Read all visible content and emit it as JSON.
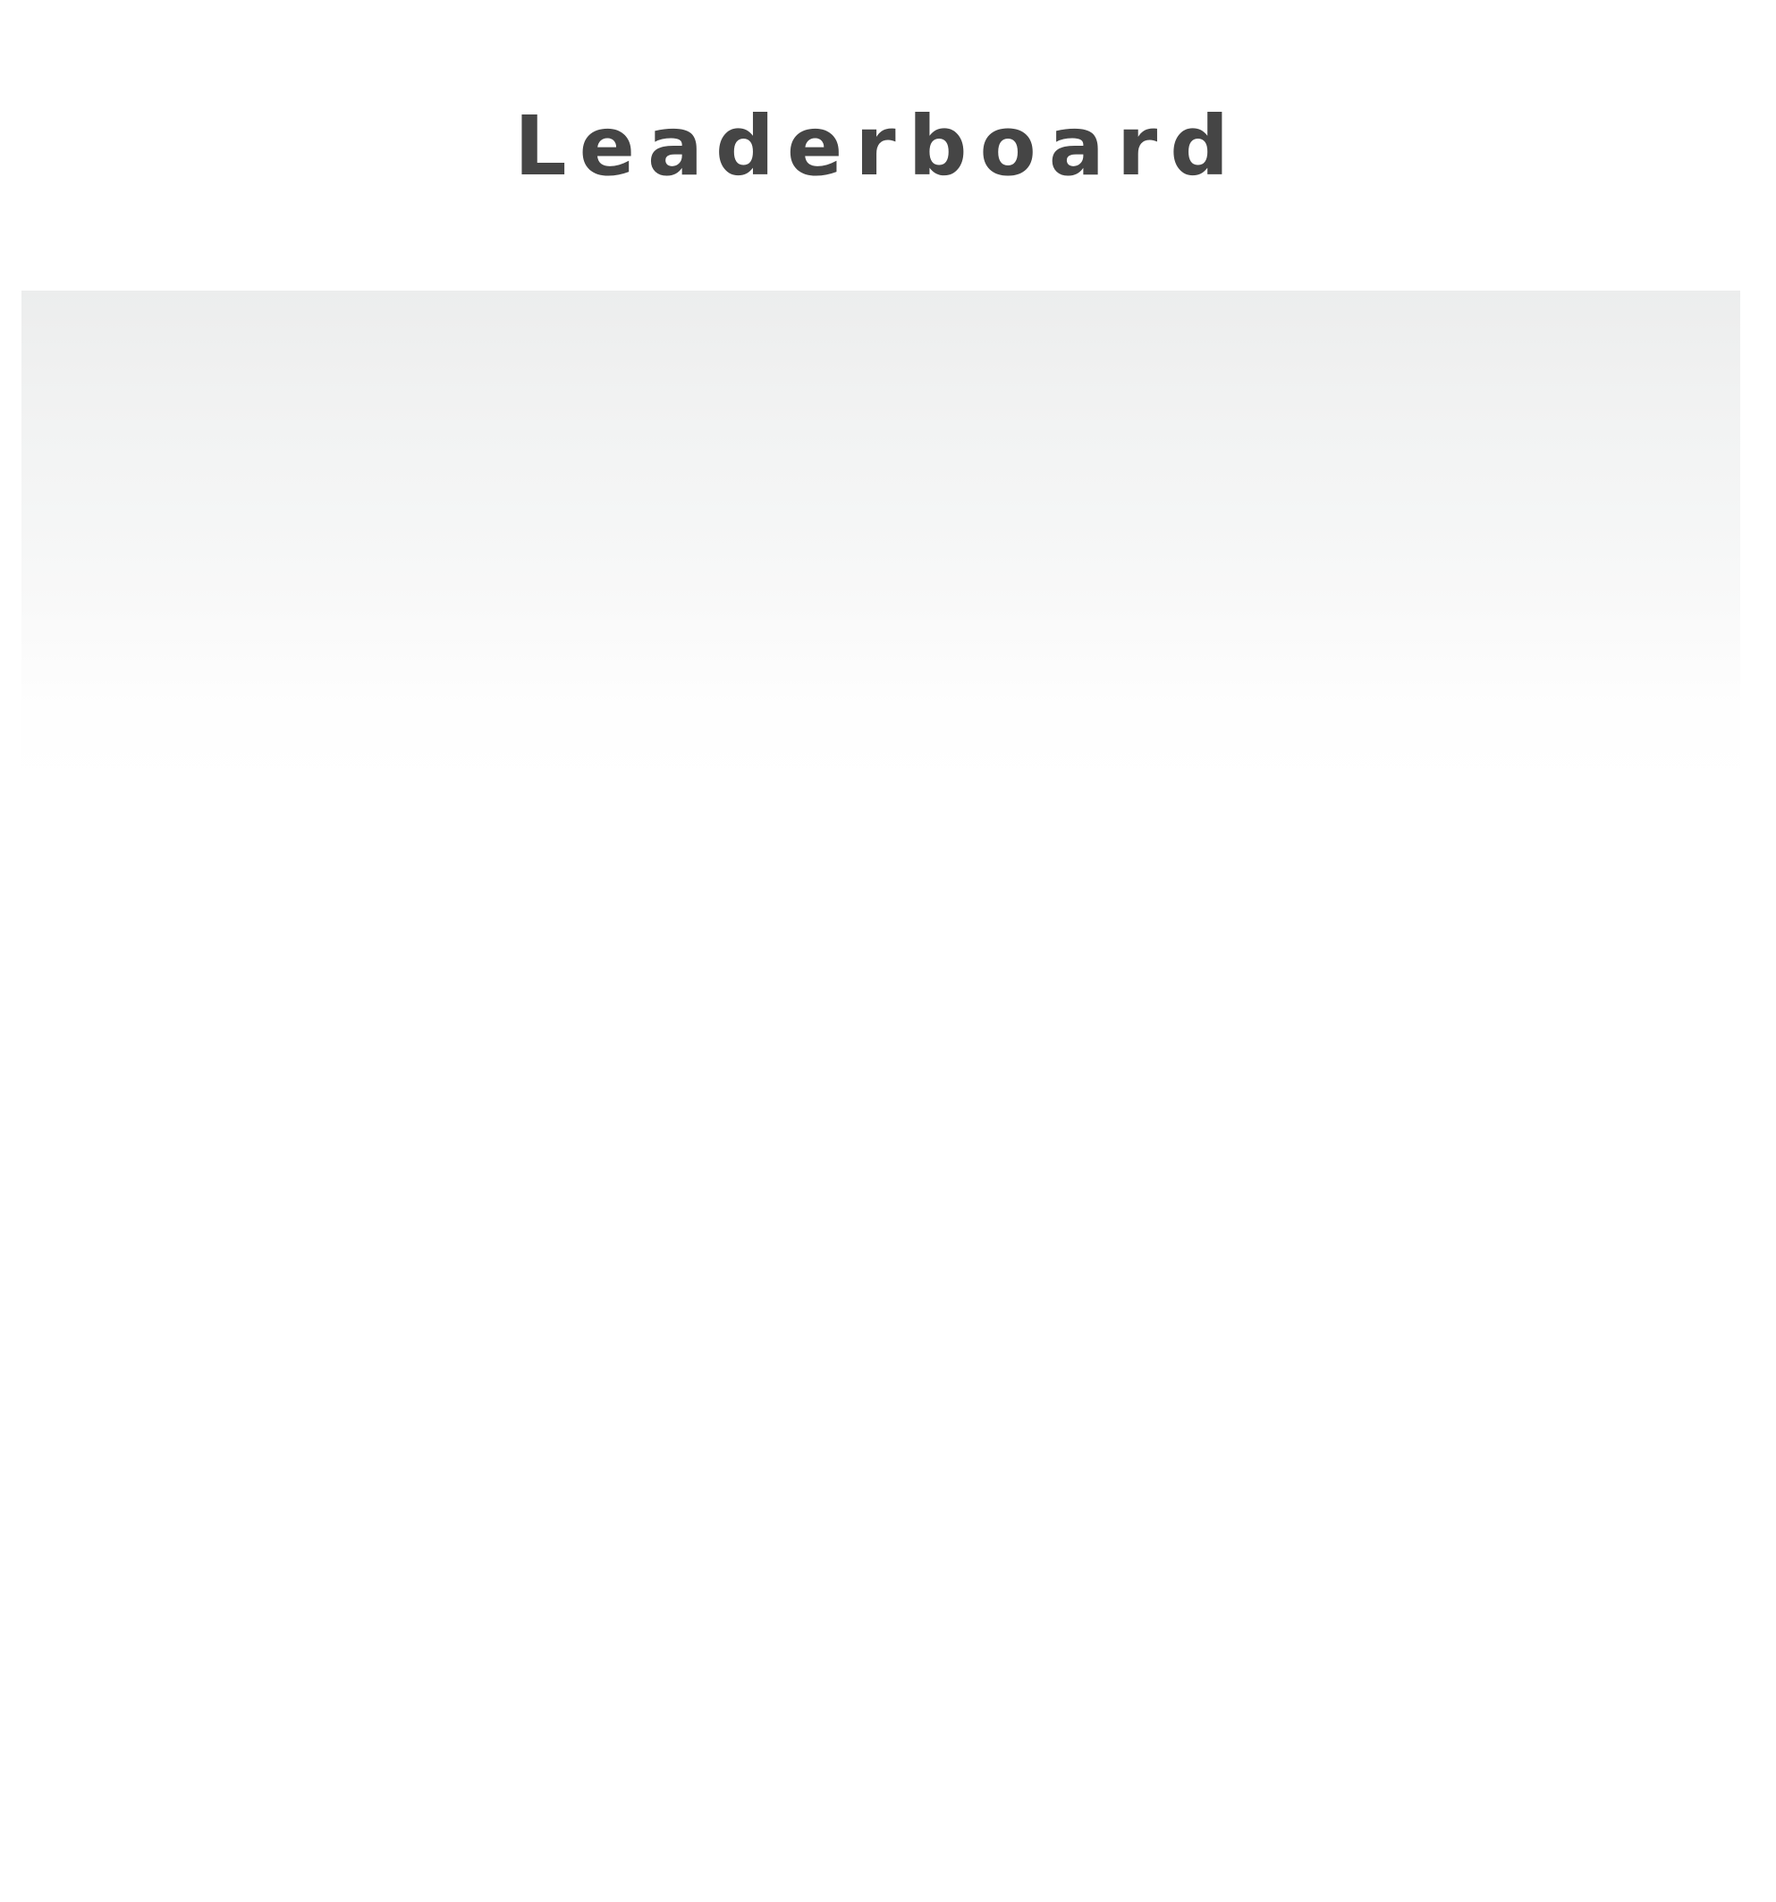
{
  "header": {
    "title": "Leaderboard"
  },
  "colors": {
    "title_text": "#454545",
    "panel_top": "#eceded",
    "background": "#ffffff"
  }
}
